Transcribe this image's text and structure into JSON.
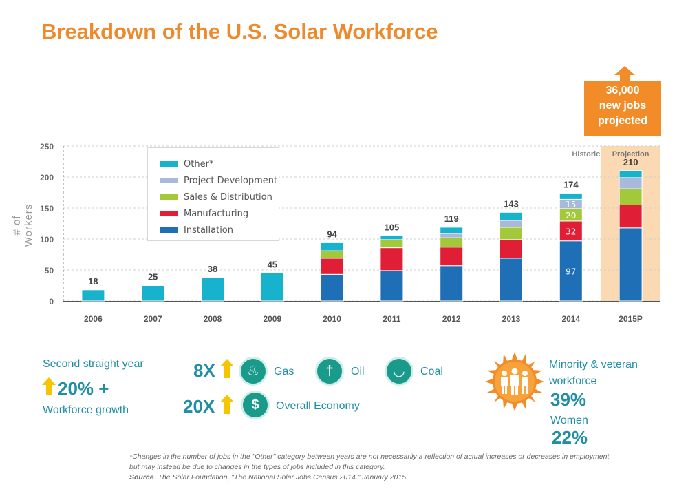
{
  "title": "Breakdown of the U.S. Solar Workforce",
  "callout": {
    "line1": "36,000",
    "line2": "new jobs",
    "line3": "projected"
  },
  "colors": {
    "other": "#17b3cc",
    "project_development": "#a9b9da",
    "sales_distribution": "#a3c93a",
    "manufacturing": "#e01f37",
    "installation": "#1f6fb6",
    "accent": "#ee8a2c",
    "teal": "#1f8fa5",
    "projection_band": "#fbd9b2"
  },
  "chart_data": {
    "type": "bar",
    "stacked": true,
    "ylabel": "# of Workers",
    "ylim": [
      0,
      250
    ],
    "yticks": [
      0,
      50,
      100,
      150,
      200,
      250
    ],
    "categories": [
      "2006",
      "2007",
      "2008",
      "2009",
      "2010",
      "2011",
      "2012",
      "2013",
      "2014",
      "2015P"
    ],
    "totals": [
      18,
      25,
      38,
      45,
      94,
      105,
      119,
      143,
      174,
      210
    ],
    "series": [
      {
        "name": "Installation",
        "key": "installation",
        "values": [
          0,
          0,
          0,
          0,
          43,
          49,
          57,
          69,
          97,
          118
        ]
      },
      {
        "name": "Manufacturing",
        "key": "manufacturing",
        "values": [
          0,
          0,
          0,
          0,
          26,
          37,
          30,
          30,
          32,
          37
        ]
      },
      {
        "name": "Sales & Distribution",
        "key": "sales_distribution",
        "values": [
          0,
          0,
          0,
          0,
          12,
          13,
          15,
          20,
          20,
          26
        ]
      },
      {
        "name": "Project Development",
        "key": "project_development",
        "values": [
          0,
          0,
          0,
          0,
          0,
          0,
          7,
          11,
          15,
          18
        ]
      },
      {
        "name": "Other*",
        "key": "other",
        "values": [
          18,
          25,
          38,
          45,
          13,
          6,
          10,
          13,
          10,
          11
        ]
      }
    ],
    "segment_labels": [
      {
        "category": "2014",
        "series": "installation",
        "text": "97"
      },
      {
        "category": "2014",
        "series": "manufacturing",
        "text": "32"
      },
      {
        "category": "2014",
        "series": "sales_distribution",
        "text": "20"
      },
      {
        "category": "2014",
        "series": "project_development",
        "text": "15"
      }
    ],
    "annotations": {
      "historic": "Historic",
      "projection": "Projection"
    },
    "legend_position": "top-left"
  },
  "legend": [
    "Other*",
    "Project Development",
    "Sales & Distribution",
    "Manufacturing",
    "Installation"
  ],
  "stats": {
    "growth_line1": "Second straight year",
    "growth_value": "20% +",
    "growth_line2": "Workforce growth",
    "gas_multiplier": "8X",
    "gas_label": "Gas",
    "oil_label": "Oil",
    "coal_label": "Coal",
    "economy_multiplier": "20X",
    "economy_label": "Overall Economy",
    "minority_line1": "Minority & veteran",
    "minority_line2": "workforce",
    "minority_value": "39%",
    "women_label": "Women",
    "women_value": "22%"
  },
  "footnote": {
    "line1": "*Changes in the number of jobs in the \"Other\" category between years are not necessarily a reflection of actual increases or decreases in employment,",
    "line2": "but may instead be due to changes in the types of jobs included in this category.",
    "source_label": "Source",
    "source_text": ": The Solar Foundation, \"The National Solar Jobs Census 2014.\" January 2015."
  }
}
